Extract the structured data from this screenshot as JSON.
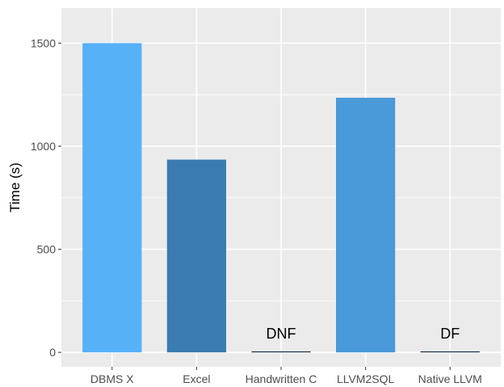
{
  "chart_data": {
    "type": "bar",
    "title": "",
    "xlabel": "",
    "ylabel": "Time (s)",
    "ylim": [
      -70,
      1670
    ],
    "yticks": [
      0,
      500,
      1000,
      1500
    ],
    "grid": true,
    "categories": [
      "DBMS X",
      "Excel",
      "Handwritten C",
      "LLVM2SQL",
      "Native LLVM"
    ],
    "values": [
      1500,
      935,
      0,
      1235,
      0
    ],
    "colors": [
      "#56b1f7",
      "#3a7bb1",
      "#132b43",
      "#4a99d9",
      "#132b43"
    ],
    "annotations": [
      "",
      "",
      "DNF",
      "",
      "DF"
    ],
    "background": "#ebebeb",
    "gridline_color": "#ffffff"
  }
}
